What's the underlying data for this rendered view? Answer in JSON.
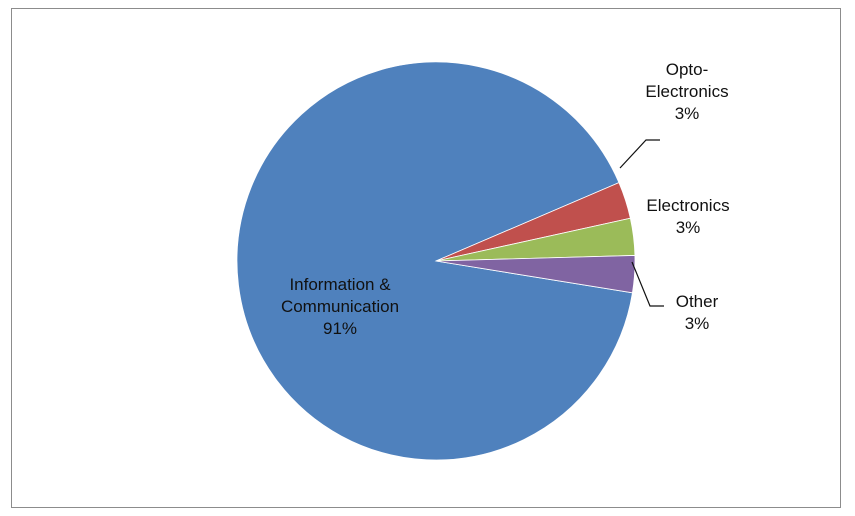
{
  "chart_data": {
    "type": "pie",
    "slices": [
      {
        "label_lines": [
          "Information &",
          "Communication"
        ],
        "value_label": "91%",
        "value": 91,
        "color": "#4F81BD"
      },
      {
        "label_lines": [
          "Opto-",
          "Electronics"
        ],
        "value_label": "3%",
        "value": 3,
        "color": "#C0504D"
      },
      {
        "label_lines": [
          "Electronics"
        ],
        "value_label": "3%",
        "value": 3,
        "color": "#9BBB59"
      },
      {
        "label_lines": [
          "Other"
        ],
        "value_label": "3%",
        "value": 3,
        "color": "#8064A2"
      }
    ],
    "legend": "none",
    "data_labels": "category-and-percent"
  }
}
